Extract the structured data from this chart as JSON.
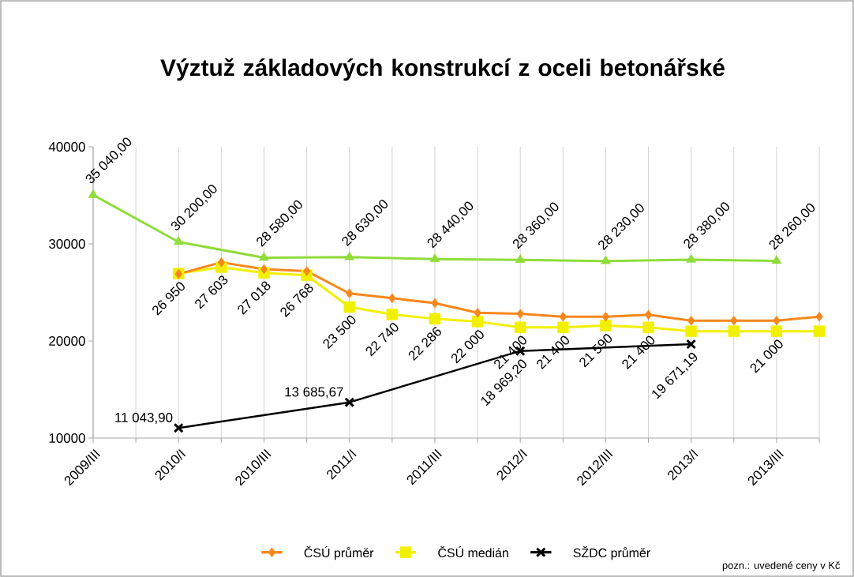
{
  "chart_data": {
    "type": "line",
    "title": "Výztuž základových konstrukcí z oceli betonářské",
    "categories": [
      "2009/III",
      null,
      "2010/I",
      null,
      "2010/III",
      null,
      "2011/I",
      null,
      "2011/III",
      null,
      "2012/I",
      null,
      "2012/III",
      null,
      "2013/I",
      null,
      "2013/III",
      null
    ],
    "series": [
      {
        "name": "ČSÚ průměr",
        "color": "#f7871c",
        "marker": "diamond",
        "values": [
          null,
          null,
          26900,
          28100,
          27400,
          27200,
          24900,
          24400,
          23900,
          22900,
          22800,
          22500,
          22500,
          22700,
          22100,
          22100,
          22100,
          22500
        ]
      },
      {
        "name": "ČSÚ medián",
        "color": "#f0f000",
        "marker": "square",
        "values": [
          null,
          null,
          26950,
          27603,
          27018,
          26768,
          23500,
          22740,
          22286,
          22000,
          21400,
          21400,
          21590,
          21400,
          21000,
          21000,
          21000,
          21000
        ],
        "value_labels": [
          null,
          null,
          "26 950",
          "27 603",
          "27 018",
          "26 768",
          "23 500",
          "22 740",
          "22 286",
          "22 000",
          "21 400",
          "21 400",
          "21 590",
          "21 400",
          null,
          null,
          "21 000",
          null
        ]
      },
      {
        "color": "#8fdc3a",
        "marker": "triangle",
        "values": [
          35040,
          null,
          30200,
          null,
          28580,
          null,
          28630,
          null,
          28440,
          null,
          28360,
          null,
          28230,
          null,
          28380,
          null,
          28260,
          null
        ],
        "value_labels": [
          "35 040,00",
          null,
          "30 200,00",
          null,
          "28 580,00",
          null,
          "28 630,00",
          null,
          "28 440,00",
          null,
          "28 360,00",
          null,
          "28 230,00",
          null,
          "28 380,00",
          null,
          "28 260,00",
          null
        ]
      },
      {
        "name": "SŽDC průměr",
        "color": "#000000",
        "marker": "cross",
        "values": [
          null,
          null,
          11043.9,
          null,
          null,
          null,
          13685.67,
          null,
          null,
          null,
          18969.2,
          null,
          null,
          null,
          19671.19,
          null,
          null,
          null
        ],
        "value_labels": [
          null,
          null,
          "11 043,90",
          null,
          null,
          null,
          "13 685,67",
          null,
          null,
          null,
          "18 969,20",
          null,
          null,
          null,
          "19 671,19",
          null,
          null,
          null
        ]
      }
    ],
    "ylim": [
      10000,
      40000
    ],
    "yticks": [
      10000,
      20000,
      30000,
      40000
    ],
    "grid": "x",
    "legend": "bottom",
    "annotations": [
      "pozn.: uvedené ceny v Kč"
    ]
  }
}
